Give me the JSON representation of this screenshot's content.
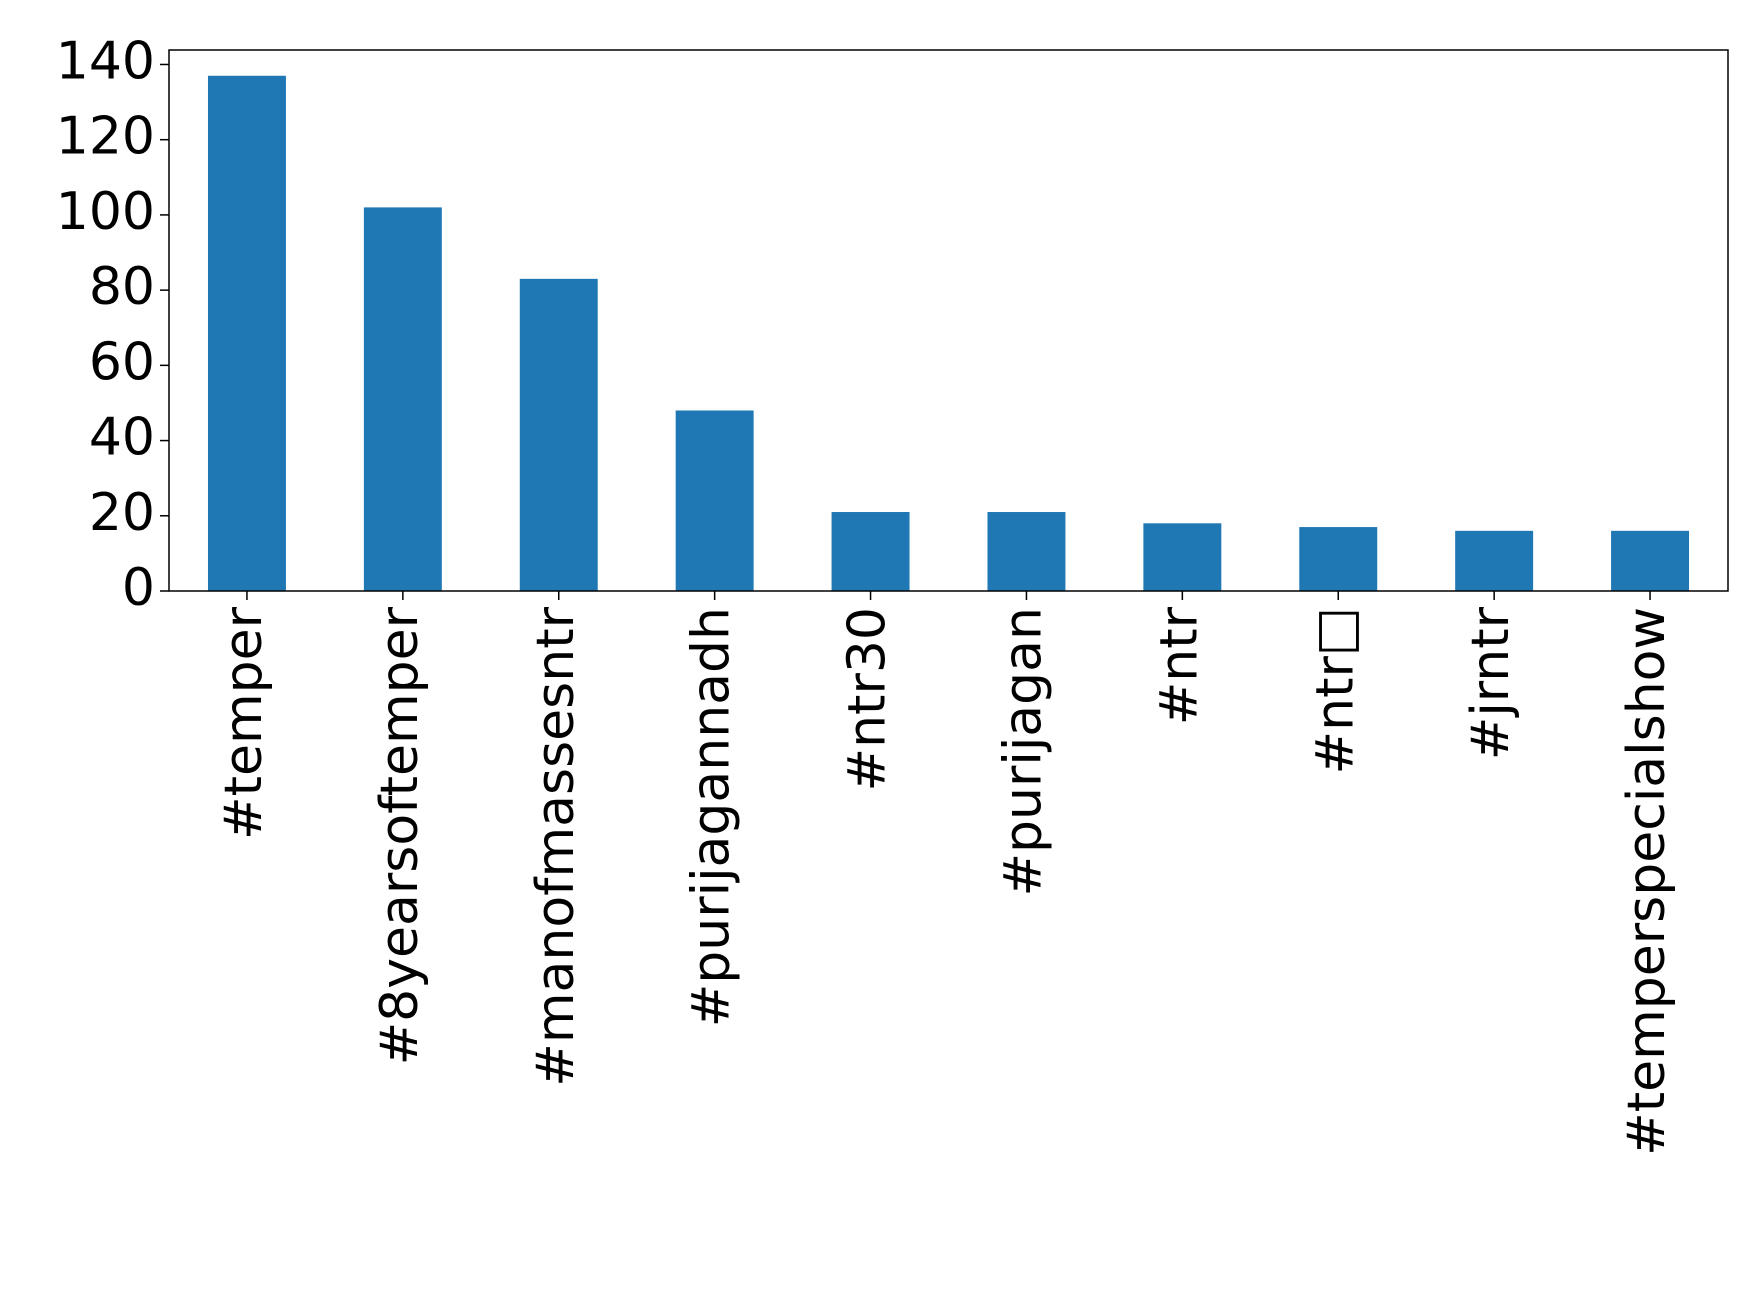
{
  "chart_data": {
    "type": "bar",
    "categories": [
      "#temper",
      "#8yearsoftemper",
      "#manofmassesntr",
      "#purijagannadh",
      "#ntr30",
      "#purijagan",
      "#ntr",
      "#ntr□",
      "#jrntr",
      "#temperspecialshow"
    ],
    "values": [
      137,
      102,
      83,
      48,
      21,
      21,
      18,
      17,
      16,
      16
    ],
    "color": "#1f77b4",
    "ylim": [
      0,
      143.85
    ],
    "yticks": [
      0,
      20,
      40,
      60,
      80,
      100,
      120,
      140
    ],
    "grid": false
  }
}
